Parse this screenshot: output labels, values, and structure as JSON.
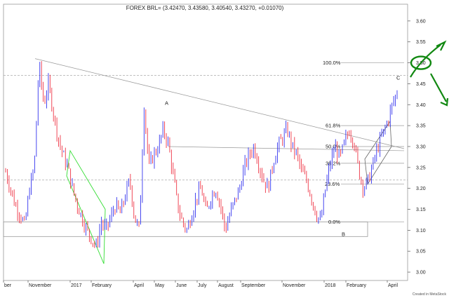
{
  "chart_data": {
    "type": "candlestick",
    "title": "FOREX BRL= (3.42470, 3.43580, 3.40540, 3.43270, +0.01070)",
    "credit": "Created in MetaStock",
    "ylim": [
      2.98,
      3.64
    ],
    "y_ticks": [
      "3.00",
      "3.05",
      "3.10",
      "3.15",
      "3.20",
      "3.25",
      "3.30",
      "3.35",
      "3.40",
      "3.45",
      "3.50",
      "3.55",
      "3.60"
    ],
    "x_ticks": [
      "ber",
      "November",
      "2017",
      "February",
      "April",
      "May",
      "June",
      "July",
      "August",
      "September",
      "November",
      "2018",
      "February",
      "April"
    ],
    "colors": {
      "up": "#3333ee",
      "down": "#ee3344",
      "trend": "#999999",
      "channel": "#33dd33",
      "annotation": "#118811"
    },
    "fib_levels": [
      {
        "label": "100.0%",
        "value": 3.5
      },
      {
        "label": "61.8%",
        "value": 3.35
      },
      {
        "label": "50.0%",
        "value": 3.3
      },
      {
        "label": "38.2%",
        "value": 3.26
      },
      {
        "label": "23.6%",
        "value": 3.21
      },
      {
        "label": "0.0%",
        "value": 3.12
      }
    ],
    "points": [
      {
        "label": "A",
        "value": 3.4
      },
      {
        "label": "B",
        "value": 3.1
      },
      {
        "label": "C",
        "value": 3.46
      }
    ],
    "price_path": [
      3.24,
      3.2,
      3.16,
      3.14,
      3.11,
      3.2,
      3.25,
      3.5,
      3.4,
      3.45,
      3.38,
      3.32,
      3.28,
      3.25,
      3.2,
      3.16,
      3.13,
      3.1,
      3.08,
      3.06,
      3.12,
      3.1,
      3.13,
      3.16,
      3.14,
      3.18,
      3.22,
      3.13,
      3.1,
      3.4,
      3.25,
      3.28,
      3.3,
      3.34,
      3.31,
      3.24,
      3.16,
      3.12,
      3.1,
      3.14,
      3.18,
      3.2,
      3.14,
      3.18,
      3.2,
      3.16,
      3.1,
      3.14,
      3.17,
      3.2,
      3.25,
      3.28,
      3.3,
      3.26,
      3.22,
      3.2,
      3.26,
      3.3,
      3.32,
      3.34,
      3.3,
      3.28,
      3.24,
      3.22,
      3.18,
      3.14,
      3.12,
      3.2,
      3.26,
      3.3,
      3.27,
      3.31,
      3.34,
      3.31,
      3.24,
      3.2,
      3.22,
      3.26,
      3.3,
      3.33,
      3.36,
      3.4,
      3.43
    ]
  }
}
